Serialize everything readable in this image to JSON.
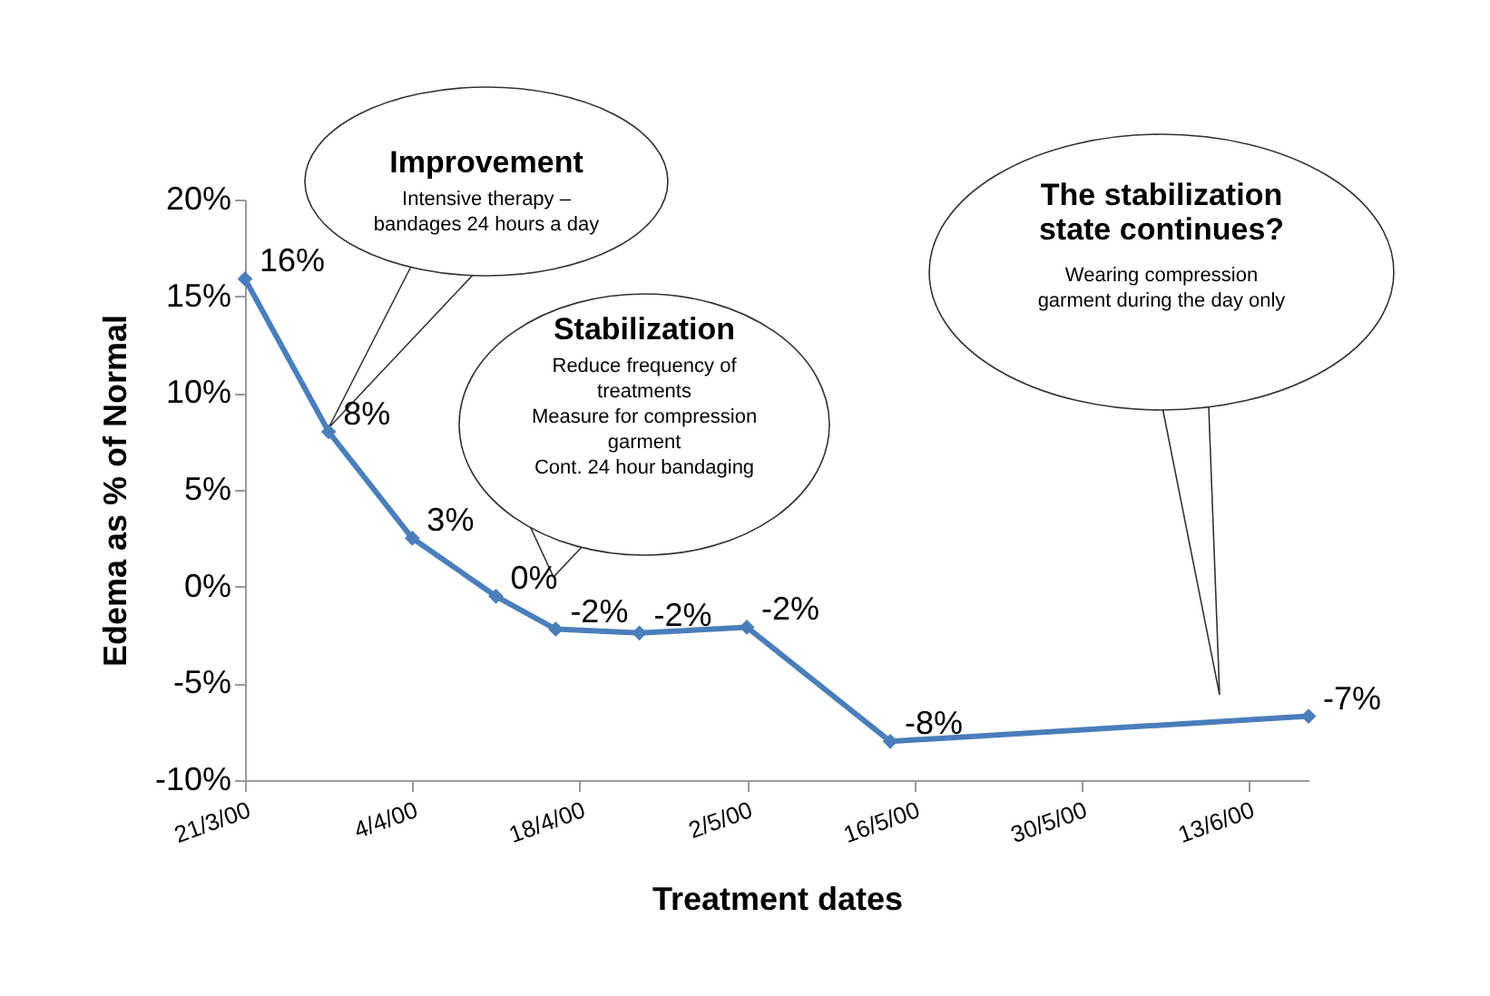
{
  "chart_data": {
    "type": "line",
    "xlabel": "Treatment dates",
    "ylabel": "Edema as % of Normal",
    "x": [
      "2000-03-21",
      "2000-03-28",
      "2000-04-04",
      "2000-04-11",
      "2000-04-16",
      "2000-04-23",
      "2000-05-02",
      "2000-05-14",
      "2000-06-18"
    ],
    "series": [
      {
        "color": "#4a7ebb",
        "values": [
          15.9,
          8.0,
          2.5,
          -0.5,
          -2.2,
          -2.4,
          -2.1,
          -8.0,
          -6.7
        ],
        "value_labels": [
          "16%",
          "8%",
          "3%",
          "0%",
          "-2%",
          "-2%",
          "-2%",
          "-8%",
          "-7%"
        ]
      }
    ],
    "xlim": [
      "2000-03-21",
      "2000-06-18"
    ],
    "xticks": [
      {
        "value": "2000-03-21",
        "label": "21/3/00"
      },
      {
        "value": "2000-04-04",
        "label": "4/4/00"
      },
      {
        "value": "2000-04-18",
        "label": "18/4/00"
      },
      {
        "value": "2000-05-02",
        "label": "2/5/00"
      },
      {
        "value": "2000-05-16",
        "label": "16/5/00"
      },
      {
        "value": "2000-05-30",
        "label": "30/5/00"
      },
      {
        "value": "2000-06-13",
        "label": "13/6/00"
      }
    ],
    "ylim": [
      -10,
      20
    ],
    "yticks": [
      {
        "value": -10,
        "label": "-10%"
      },
      {
        "value": -5,
        "label": "-5%"
      },
      {
        "value": 0,
        "label": "0%"
      },
      {
        "value": 5,
        "label": "5%"
      },
      {
        "value": 10,
        "label": "10%"
      },
      {
        "value": 15,
        "label": "15%"
      },
      {
        "value": 20,
        "label": "20%"
      }
    ],
    "grid": false,
    "marker": "diamond",
    "line_style": "solid",
    "annotations": [
      "Improvement",
      "Intensive therapy –\nbandages 24 hours a day",
      "Stabilization",
      "Reduce frequency of\ntreatments\nMeasure for compression\ngarment\nCont. 24 hour bandaging",
      "The stabilization\nstate continues?",
      "Wearing compression\ngarment during the day only"
    ]
  }
}
